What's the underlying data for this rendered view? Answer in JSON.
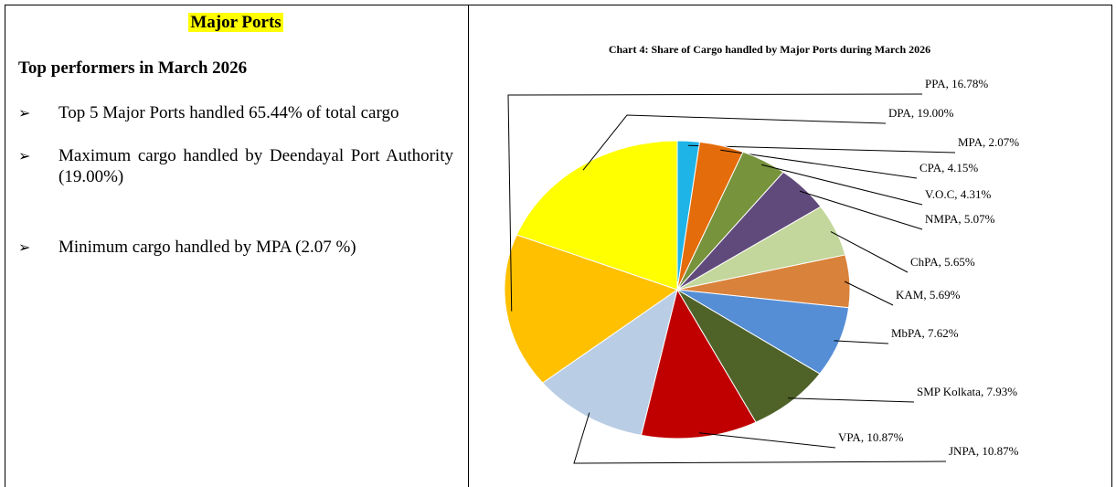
{
  "header": {
    "title": "Major Ports"
  },
  "left": {
    "subtitle": "Top performers in March 2026",
    "bullets": [
      "Top 5 Major Ports handled 65.44% of total cargo",
      "Maximum cargo handled by Deendayal Port Authority (19.00%)",
      "Minimum cargo handled by MPA (2.07 %)"
    ]
  },
  "chart_data": {
    "type": "pie",
    "title": "Chart 4: Share of Cargo handled by Major Ports during March 2026",
    "values": [
      2.07,
      4.15,
      4.31,
      5.07,
      5.65,
      5.69,
      7.62,
      7.93,
      10.87,
      10.87,
      16.78,
      19.0
    ],
    "value_labels": [
      "MPA, 2.07%",
      "CPA, 4.15%",
      "V.O.C, 4.31%",
      "NMPA, 5.07%",
      "ChPA, 5.65%",
      "KAM, 5.69%",
      "MbPA, 7.62%",
      "SMP Kolkata, 7.93%",
      "VPA, 10.87%",
      "JNPA, 10.87%",
      "PPA, 16.78%",
      "DPA, 19.00%"
    ],
    "colors": [
      "#1fb4e8",
      "#e46c0a",
      "#77933c",
      "#604a7b",
      "#c3d69b",
      "#d9823b",
      "#558ed5",
      "#4f6228",
      "#c00000",
      "#b9cde5",
      "#ffc000",
      "#ffff00"
    ]
  }
}
